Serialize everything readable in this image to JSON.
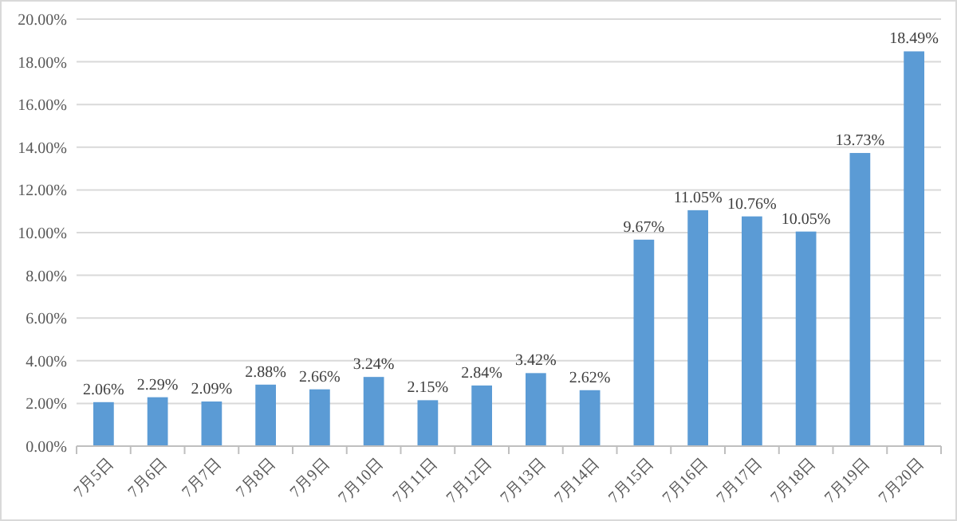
{
  "chart_data": {
    "type": "bar",
    "categories": [
      "7月5日",
      "7月6日",
      "7月7日",
      "7月8日",
      "7月9日",
      "7月10日",
      "7月11日",
      "7月12日",
      "7月13日",
      "7月14日",
      "7月15日",
      "7月16日",
      "7月17日",
      "7月18日",
      "7月19日",
      "7月20日"
    ],
    "values": [
      2.06,
      2.29,
      2.09,
      2.88,
      2.66,
      3.24,
      2.15,
      2.84,
      3.42,
      2.62,
      9.67,
      11.05,
      10.76,
      10.05,
      13.73,
      18.49
    ],
    "value_labels": [
      "2.06%",
      "2.29%",
      "2.09%",
      "2.88%",
      "2.66%",
      "3.24%",
      "2.15%",
      "2.84%",
      "3.42%",
      "2.62%",
      "9.67%",
      "11.05%",
      "10.76%",
      "10.05%",
      "13.73%",
      "18.49%"
    ],
    "color": "#5b9bd5",
    "ylim": [
      0,
      20
    ],
    "yticks": [
      {
        "value": 0,
        "label": "0.00%"
      },
      {
        "value": 2,
        "label": "2.00%"
      },
      {
        "value": 4,
        "label": "4.00%"
      },
      {
        "value": 6,
        "label": "6.00%"
      },
      {
        "value": 8,
        "label": "8.00%"
      },
      {
        "value": 10,
        "label": "10.00%"
      },
      {
        "value": 12,
        "label": "12.00%"
      },
      {
        "value": 14,
        "label": "14.00%"
      },
      {
        "value": 16,
        "label": "16.00%"
      },
      {
        "value": 18,
        "label": "18.00%"
      },
      {
        "value": 20,
        "label": "20.00%"
      }
    ],
    "grid": "y"
  }
}
